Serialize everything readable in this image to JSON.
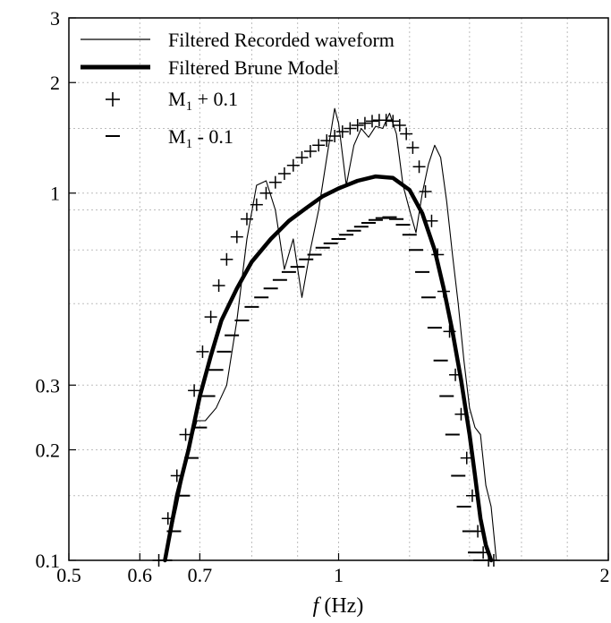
{
  "chart_data": {
    "type": "line",
    "xlabel_italic": "f",
    "xlabel_rest": " (Hz)",
    "xscale": "log",
    "yscale": "log",
    "xlim": [
      0.5,
      2
    ],
    "ylim": [
      0.1,
      3
    ],
    "x_ticks": [
      {
        "value": 0.5,
        "label": "0.5"
      },
      {
        "value": 0.6,
        "label": "0.6"
      },
      {
        "value": 0.7,
        "label": "0.7"
      },
      {
        "value": 1,
        "label": "1"
      },
      {
        "value": 2,
        "label": "2"
      }
    ],
    "y_ticks": [
      {
        "value": 0.1,
        "label": "0.1"
      },
      {
        "value": 0.2,
        "label": "0.2"
      },
      {
        "value": 0.3,
        "label": "0.3"
      },
      {
        "value": 1,
        "label": "1"
      },
      {
        "value": 2,
        "label": "2"
      },
      {
        "value": 3,
        "label": "3"
      }
    ],
    "grid": true,
    "legend_position": "top-left",
    "legend": [
      {
        "label": "Filtered Recorded waveform",
        "style": "thin-line"
      },
      {
        "label": "Filtered Brune Model",
        "style": "thick-line"
      },
      {
        "label_main": "M",
        "label_sub": "1",
        "label_rest": " + 0.1",
        "style": "plus-marker"
      },
      {
        "label_main": "M",
        "label_sub": "1",
        "label_rest": " - 0.1",
        "style": "minus-marker"
      }
    ],
    "series": [
      {
        "name": "Filtered Recorded waveform",
        "style": "thin-line",
        "color": "#000000",
        "x": [
          0.64,
          0.66,
          0.68,
          0.695,
          0.71,
          0.73,
          0.75,
          0.77,
          0.79,
          0.81,
          0.83,
          0.85,
          0.87,
          0.89,
          0.91,
          0.93,
          0.95,
          0.97,
          0.99,
          1.0,
          1.02,
          1.04,
          1.06,
          1.08,
          1.1,
          1.12,
          1.14,
          1.16,
          1.18,
          1.2,
          1.22,
          1.24,
          1.26,
          1.28,
          1.3,
          1.32,
          1.34,
          1.36,
          1.38,
          1.4,
          1.42,
          1.44,
          1.46,
          1.48,
          1.5
        ],
        "y": [
          0.1,
          0.14,
          0.2,
          0.24,
          0.24,
          0.26,
          0.3,
          0.45,
          0.75,
          1.05,
          1.08,
          0.9,
          0.62,
          0.75,
          0.52,
          0.7,
          0.9,
          1.25,
          1.7,
          1.55,
          1.05,
          1.35,
          1.5,
          1.42,
          1.52,
          1.5,
          1.65,
          1.45,
          1.05,
          0.9,
          0.78,
          1.0,
          1.2,
          1.35,
          1.25,
          0.95,
          0.68,
          0.5,
          0.35,
          0.26,
          0.23,
          0.22,
          0.16,
          0.14,
          0.1
        ]
      },
      {
        "name": "Filtered Brune Model",
        "style": "thick-line",
        "color": "#000000",
        "x": [
          0.64,
          0.66,
          0.68,
          0.7,
          0.72,
          0.74,
          0.77,
          0.8,
          0.84,
          0.88,
          0.92,
          0.96,
          1.0,
          1.05,
          1.1,
          1.15,
          1.2,
          1.24,
          1.28,
          1.31,
          1.34,
          1.37,
          1.4,
          1.42,
          1.44,
          1.46,
          1.48
        ],
        "y": [
          0.1,
          0.15,
          0.2,
          0.28,
          0.36,
          0.45,
          0.55,
          0.65,
          0.75,
          0.84,
          0.91,
          0.98,
          1.03,
          1.08,
          1.11,
          1.1,
          1.02,
          0.88,
          0.7,
          0.55,
          0.42,
          0.31,
          0.22,
          0.17,
          0.13,
          0.11,
          0.1
        ]
      },
      {
        "name": "M1 + 0.1",
        "style": "plus-marker",
        "color": "#000000",
        "x": [
          0.63,
          0.645,
          0.66,
          0.675,
          0.69,
          0.705,
          0.72,
          0.735,
          0.75,
          0.77,
          0.79,
          0.81,
          0.83,
          0.85,
          0.87,
          0.89,
          0.91,
          0.93,
          0.95,
          0.97,
          0.99,
          1.01,
          1.03,
          1.05,
          1.07,
          1.09,
          1.11,
          1.13,
          1.15,
          1.17,
          1.19,
          1.21,
          1.23,
          1.25,
          1.27,
          1.29,
          1.31,
          1.33,
          1.35,
          1.37,
          1.39,
          1.41,
          1.43,
          1.45,
          1.47,
          1.49
        ],
        "y": [
          0.1,
          0.13,
          0.17,
          0.22,
          0.29,
          0.37,
          0.46,
          0.56,
          0.66,
          0.76,
          0.85,
          0.93,
          1.0,
          1.07,
          1.13,
          1.19,
          1.25,
          1.3,
          1.35,
          1.39,
          1.43,
          1.47,
          1.5,
          1.53,
          1.55,
          1.57,
          1.58,
          1.58,
          1.57,
          1.53,
          1.45,
          1.33,
          1.18,
          1.01,
          0.84,
          0.68,
          0.54,
          0.42,
          0.32,
          0.25,
          0.19,
          0.15,
          0.12,
          0.105,
          0.1,
          0.1
        ]
      },
      {
        "name": "M1 - 0.1",
        "style": "minus-marker",
        "color": "#000000",
        "x": [
          0.64,
          0.655,
          0.67,
          0.685,
          0.7,
          0.715,
          0.73,
          0.745,
          0.76,
          0.78,
          0.8,
          0.82,
          0.84,
          0.86,
          0.88,
          0.9,
          0.92,
          0.94,
          0.96,
          0.98,
          1.0,
          1.02,
          1.04,
          1.06,
          1.08,
          1.1,
          1.12,
          1.14,
          1.16,
          1.18,
          1.2,
          1.22,
          1.24,
          1.26,
          1.28,
          1.3,
          1.32,
          1.34,
          1.36,
          1.38,
          1.4,
          1.42,
          1.44,
          1.46
        ],
        "y": [
          0.1,
          0.12,
          0.15,
          0.19,
          0.23,
          0.28,
          0.33,
          0.37,
          0.41,
          0.45,
          0.49,
          0.52,
          0.55,
          0.58,
          0.61,
          0.63,
          0.66,
          0.68,
          0.71,
          0.73,
          0.75,
          0.77,
          0.79,
          0.81,
          0.83,
          0.845,
          0.855,
          0.86,
          0.85,
          0.82,
          0.77,
          0.7,
          0.61,
          0.52,
          0.43,
          0.35,
          0.28,
          0.22,
          0.17,
          0.14,
          0.12,
          0.105,
          0.1,
          0.1
        ]
      }
    ]
  }
}
